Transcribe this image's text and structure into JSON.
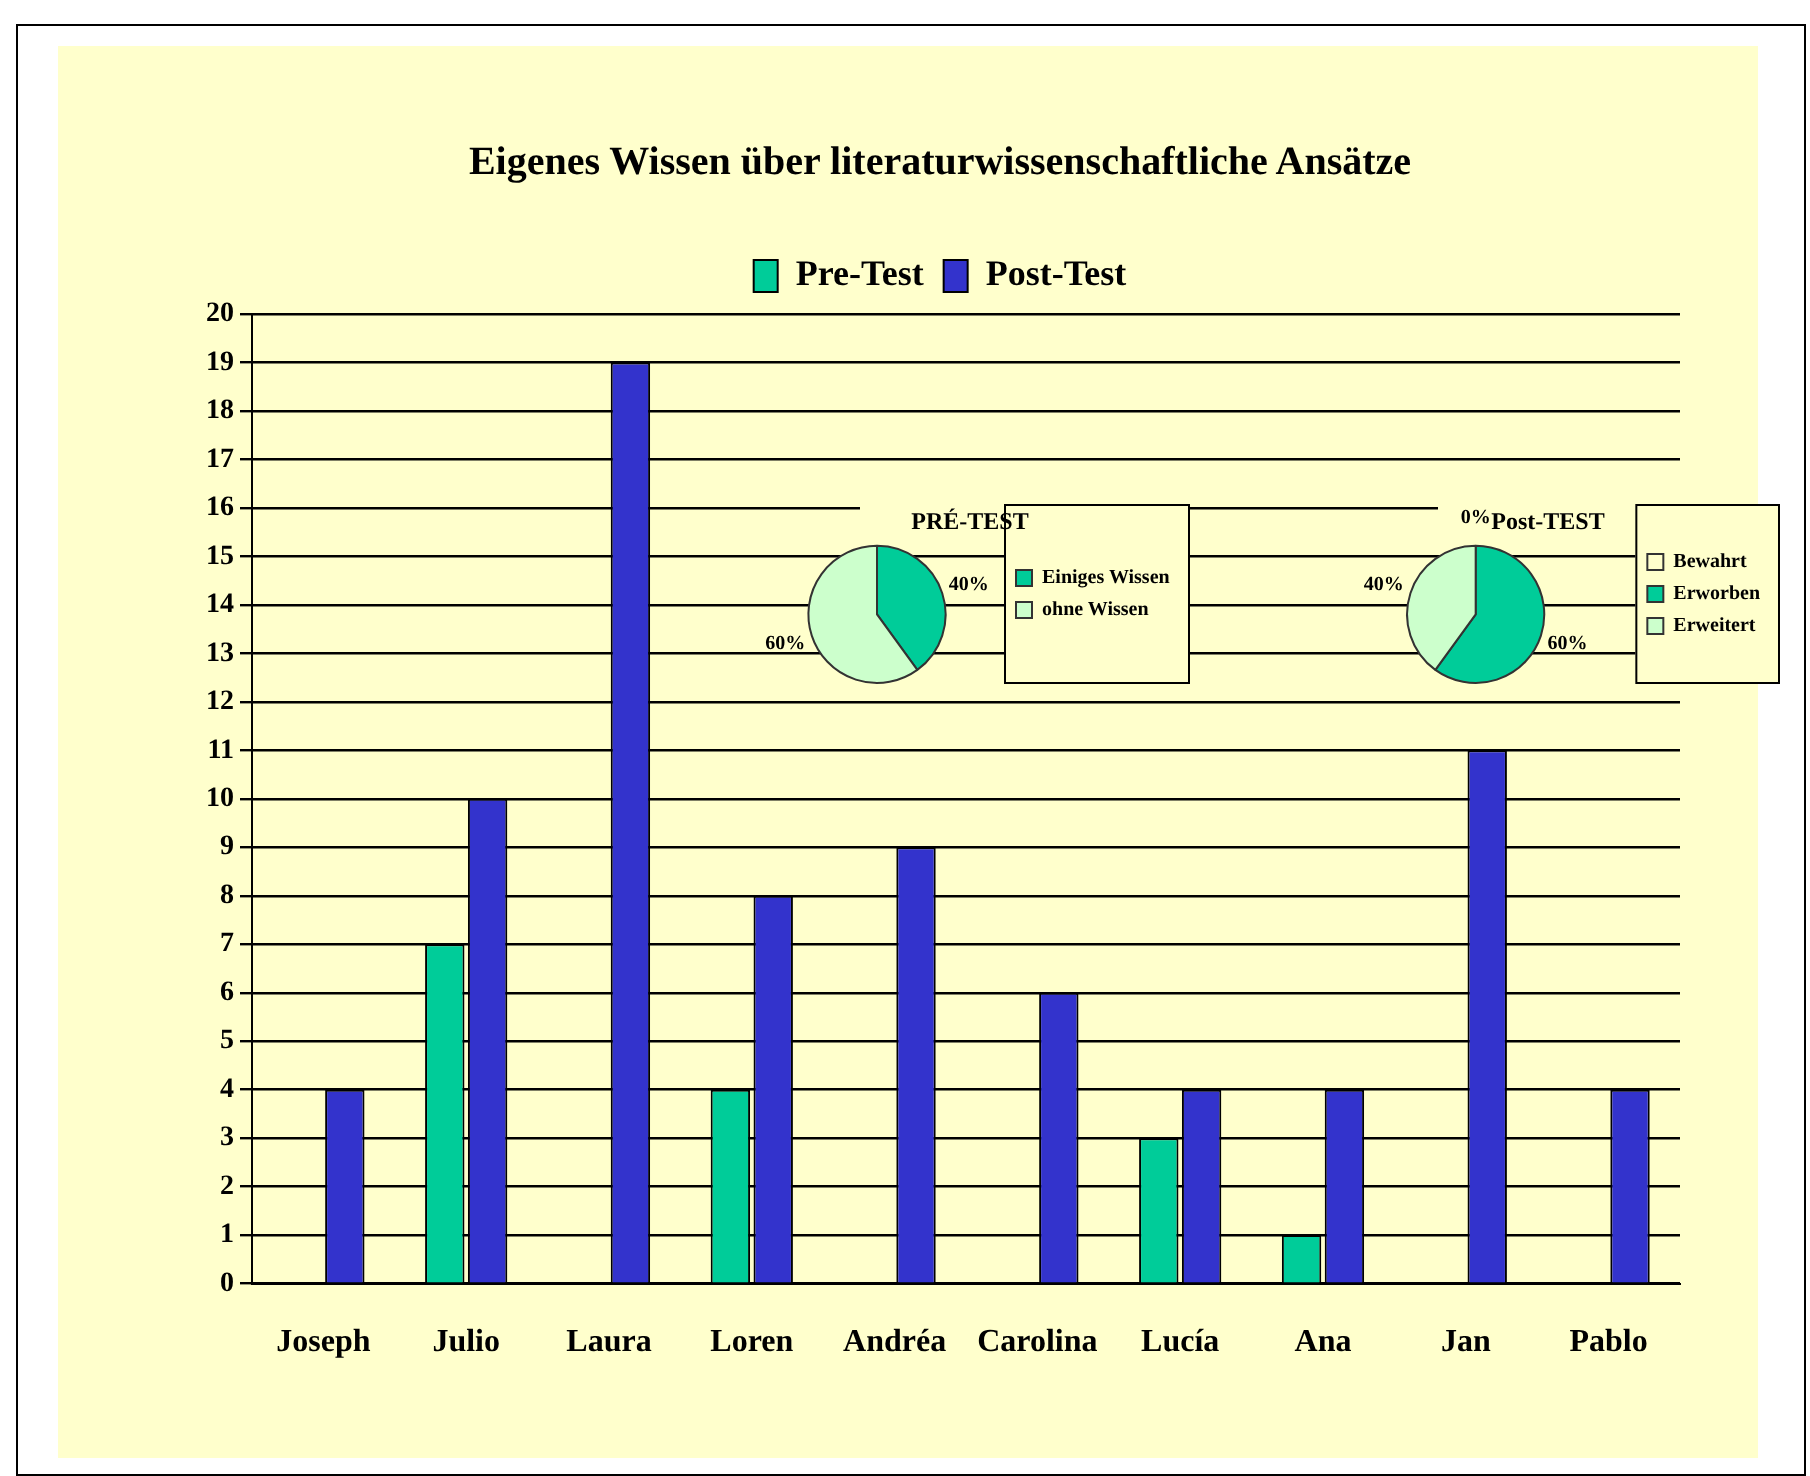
{
  "chart_data": [
    {
      "type": "bar",
      "title": "Eigenes Wissen über literaturwissenschaftliche Ansätze",
      "categories": [
        "Joseph",
        "Julio",
        "Laura",
        "Loren",
        "Andréa",
        "Carolina",
        "Lucía",
        "Ana",
        "Jan",
        "Pablo"
      ],
      "series": [
        {
          "name": "Pre-Test",
          "color": "#00cc99",
          "values": [
            0,
            7,
            0,
            4,
            0,
            0,
            3,
            1,
            0,
            0
          ]
        },
        {
          "name": "Post-Test",
          "color": "#3333cc",
          "values": [
            4,
            10,
            19,
            8,
            9,
            6,
            4,
            4,
            11,
            4
          ]
        }
      ],
      "ylim": [
        0,
        20
      ],
      "yticks": [
        0,
        1,
        2,
        3,
        4,
        5,
        6,
        7,
        8,
        9,
        10,
        11,
        12,
        13,
        14,
        15,
        16,
        17,
        18,
        19,
        20
      ],
      "grid": "y",
      "legend": "top"
    },
    {
      "type": "pie",
      "title": "PRÉ-TEST",
      "categories": [
        "Einiges Wissen",
        "ohne Wissen"
      ],
      "values": [
        40,
        60
      ],
      "colors": [
        "#00cc99",
        "#ccffcc"
      ],
      "value_labels": [
        "40%",
        "60%"
      ],
      "legend": "right"
    },
    {
      "type": "pie",
      "title": "Post-TEST",
      "categories": [
        "Bewahrt",
        "Erworben",
        "Erweitert"
      ],
      "values": [
        0,
        60,
        40
      ],
      "colors": [
        "#ffffcc",
        "#00cc99",
        "#ccffcc"
      ],
      "value_labels": [
        "0%",
        "60%",
        "40%"
      ],
      "legend": "right"
    }
  ]
}
